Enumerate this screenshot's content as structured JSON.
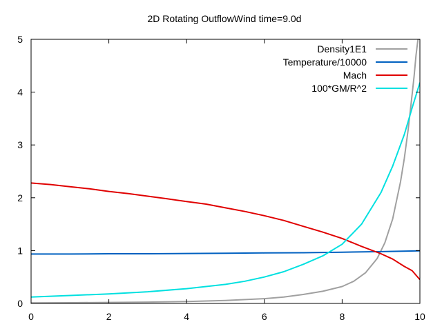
{
  "chart_data": {
    "type": "line",
    "title": "2D Rotating OutflowWind time=9.0d",
    "xlabel": "",
    "ylabel": "",
    "xlim": [
      0,
      10
    ],
    "ylim": [
      0,
      5
    ],
    "xticks": [
      0,
      2,
      4,
      6,
      8,
      10
    ],
    "yticks": [
      0,
      1,
      2,
      3,
      4,
      5
    ],
    "grid": false,
    "legend_position": "top-right",
    "series": [
      {
        "name": "Density1E1",
        "color": "#a0a0a0",
        "x": [
          0,
          1,
          2,
          3,
          4,
          5,
          6,
          6.5,
          7,
          7.5,
          8,
          8.3,
          8.6,
          8.9,
          9.1,
          9.3,
          9.5,
          9.6,
          9.7,
          9.8,
          9.85,
          9.9,
          9.95,
          10
        ],
        "y": [
          0.01,
          0.013,
          0.018,
          0.025,
          0.035,
          0.055,
          0.09,
          0.12,
          0.17,
          0.23,
          0.32,
          0.42,
          0.58,
          0.85,
          1.15,
          1.6,
          2.3,
          2.75,
          3.3,
          3.95,
          4.3,
          4.7,
          5.0,
          5.0
        ]
      },
      {
        "name": "Temperature/10000",
        "color": "#0060c0",
        "x": [
          0,
          1,
          2,
          3,
          4,
          5,
          6,
          7,
          8,
          9,
          10
        ],
        "y": [
          0.935,
          0.935,
          0.94,
          0.94,
          0.945,
          0.95,
          0.955,
          0.96,
          0.97,
          0.98,
          0.995
        ]
      },
      {
        "name": "Mach",
        "color": "#e00000",
        "x": [
          0,
          0.5,
          1,
          1.5,
          2,
          2.5,
          3,
          3.5,
          4,
          4.5,
          5,
          5.5,
          6,
          6.5,
          7,
          7.5,
          8,
          8.5,
          9,
          9.3,
          9.6,
          9.8,
          10
        ],
        "y": [
          2.28,
          2.25,
          2.21,
          2.17,
          2.12,
          2.08,
          2.03,
          1.98,
          1.93,
          1.88,
          1.81,
          1.74,
          1.66,
          1.57,
          1.46,
          1.35,
          1.23,
          1.08,
          0.94,
          0.84,
          0.7,
          0.62,
          0.45
        ]
      },
      {
        "name": "100*GM/R^2",
        "color": "#00e0e0",
        "x": [
          0,
          1,
          2,
          3,
          4,
          5,
          5.5,
          6,
          6.5,
          7,
          7.5,
          8,
          8.5,
          9,
          9.3,
          9.6,
          9.8,
          10
        ],
        "y": [
          0.12,
          0.15,
          0.18,
          0.22,
          0.28,
          0.36,
          0.42,
          0.5,
          0.6,
          0.74,
          0.9,
          1.12,
          1.5,
          2.1,
          2.6,
          3.2,
          3.7,
          4.18
        ]
      }
    ]
  }
}
